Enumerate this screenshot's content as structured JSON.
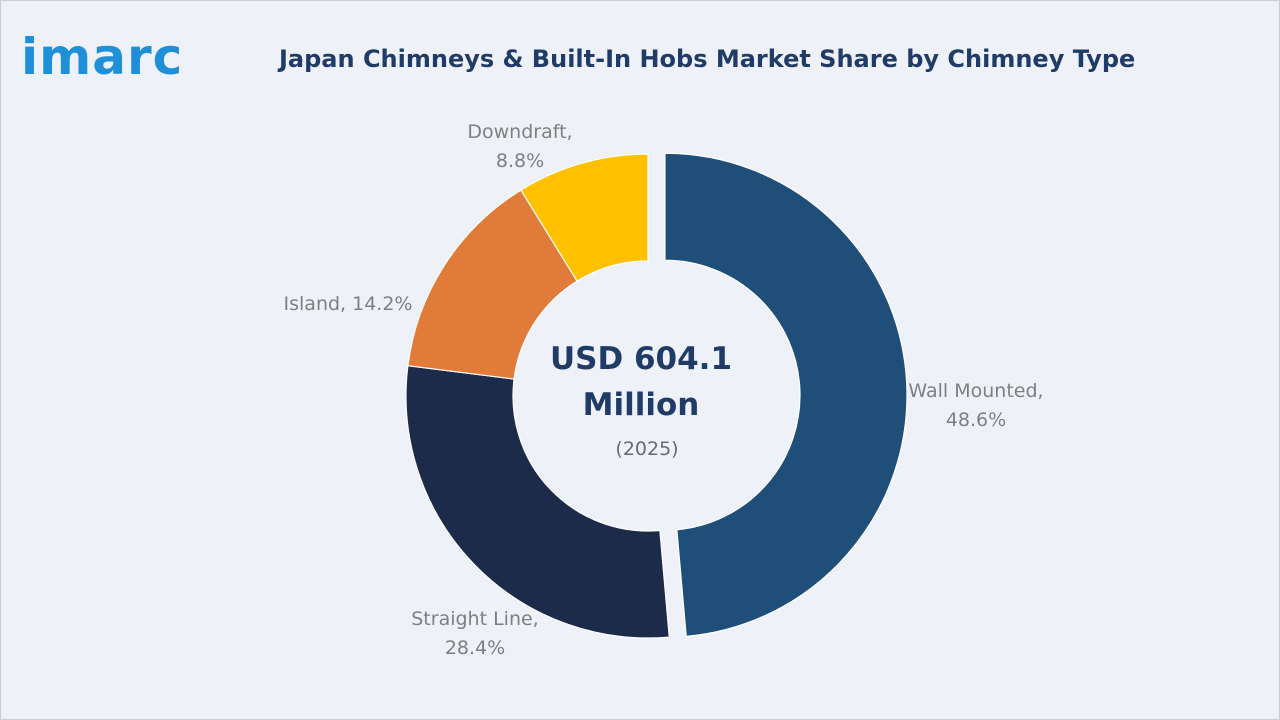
{
  "logo": {
    "text": "imarc"
  },
  "title": "Japan Chimneys & Built-In Hobs Market Share by Chimney Type",
  "center": {
    "line1": "USD 604.1",
    "line2": "Million",
    "year": "(2025)"
  },
  "chart_data": {
    "type": "pie",
    "variant": "donut",
    "title": "Japan Chimneys & Built-In Hobs Market Share by Chimney Type",
    "unit": "%",
    "series": [
      {
        "name": "Wall Mounted",
        "value": 48.6,
        "label_lines": [
          "Wall Mounted,",
          "48.6%"
        ],
        "color": "#1f4e79",
        "exploded": true
      },
      {
        "name": "Straight Line",
        "value": 28.4,
        "label_lines": [
          "Straight Line,",
          "28.4%"
        ],
        "color": "#1c2b4a",
        "exploded": false
      },
      {
        "name": "Island",
        "value": 14.2,
        "label_lines": [
          "Island, 14.2%"
        ],
        "color": "#e07b39",
        "exploded": false
      },
      {
        "name": "Downdraft",
        "value": 8.8,
        "label_lines": [
          "Downdraft,",
          "8.8%"
        ],
        "color": "#ffc000",
        "exploded": false
      }
    ]
  }
}
